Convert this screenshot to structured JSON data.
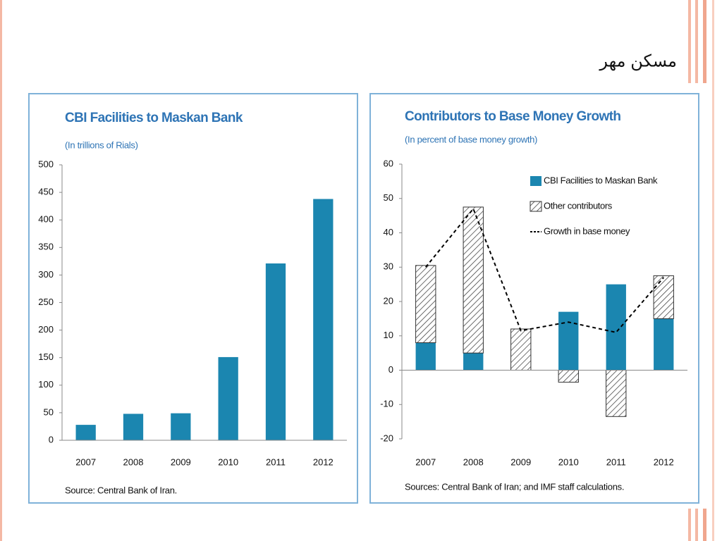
{
  "slide_title": "مسکن مهر",
  "chart_data": [
    {
      "type": "bar",
      "title": "CBI Facilities to Maskan Bank",
      "subtitle": "(In trillions of Rials)",
      "source": "Source: Central Bank of Iran.",
      "categories": [
        "2007",
        "2008",
        "2009",
        "2010",
        "2011",
        "2012"
      ],
      "values": [
        28,
        48,
        49,
        151,
        321,
        438
      ],
      "color": "#1b86b0",
      "ylim": [
        0,
        500
      ],
      "yticks": [
        0,
        50,
        100,
        150,
        200,
        250,
        300,
        350,
        400,
        450,
        500
      ],
      "grid": false
    },
    {
      "type": "stacked-bar",
      "title": "Contributors to Base Money Growth",
      "subtitle": "(In percent of base money growth)",
      "source": "Sources: Central Bank of Iran; and IMF staff calculations.",
      "categories": [
        "2007",
        "2008",
        "2009",
        "2010",
        "2011",
        "2012"
      ],
      "series": [
        {
          "name": "CBI Facilities to Maskan Bank",
          "color": "#1b86b0",
          "values": [
            8,
            5,
            0,
            17,
            25,
            15
          ]
        },
        {
          "name": "Other contributors",
          "color": "#333333",
          "pattern": "hatch",
          "values": [
            22.5,
            42.5,
            12,
            -3.5,
            -13.5,
            12.5
          ]
        },
        {
          "name": "Growth in base money",
          "color": "#000000",
          "type": "line",
          "line_style": "dashed",
          "values": [
            30,
            47,
            11.5,
            14,
            11,
            27
          ]
        }
      ],
      "ylim": [
        -20,
        60
      ],
      "yticks": [
        -20,
        -10,
        0,
        10,
        20,
        30,
        40,
        50,
        60
      ],
      "grid": false,
      "legend": "upper-right"
    }
  ]
}
